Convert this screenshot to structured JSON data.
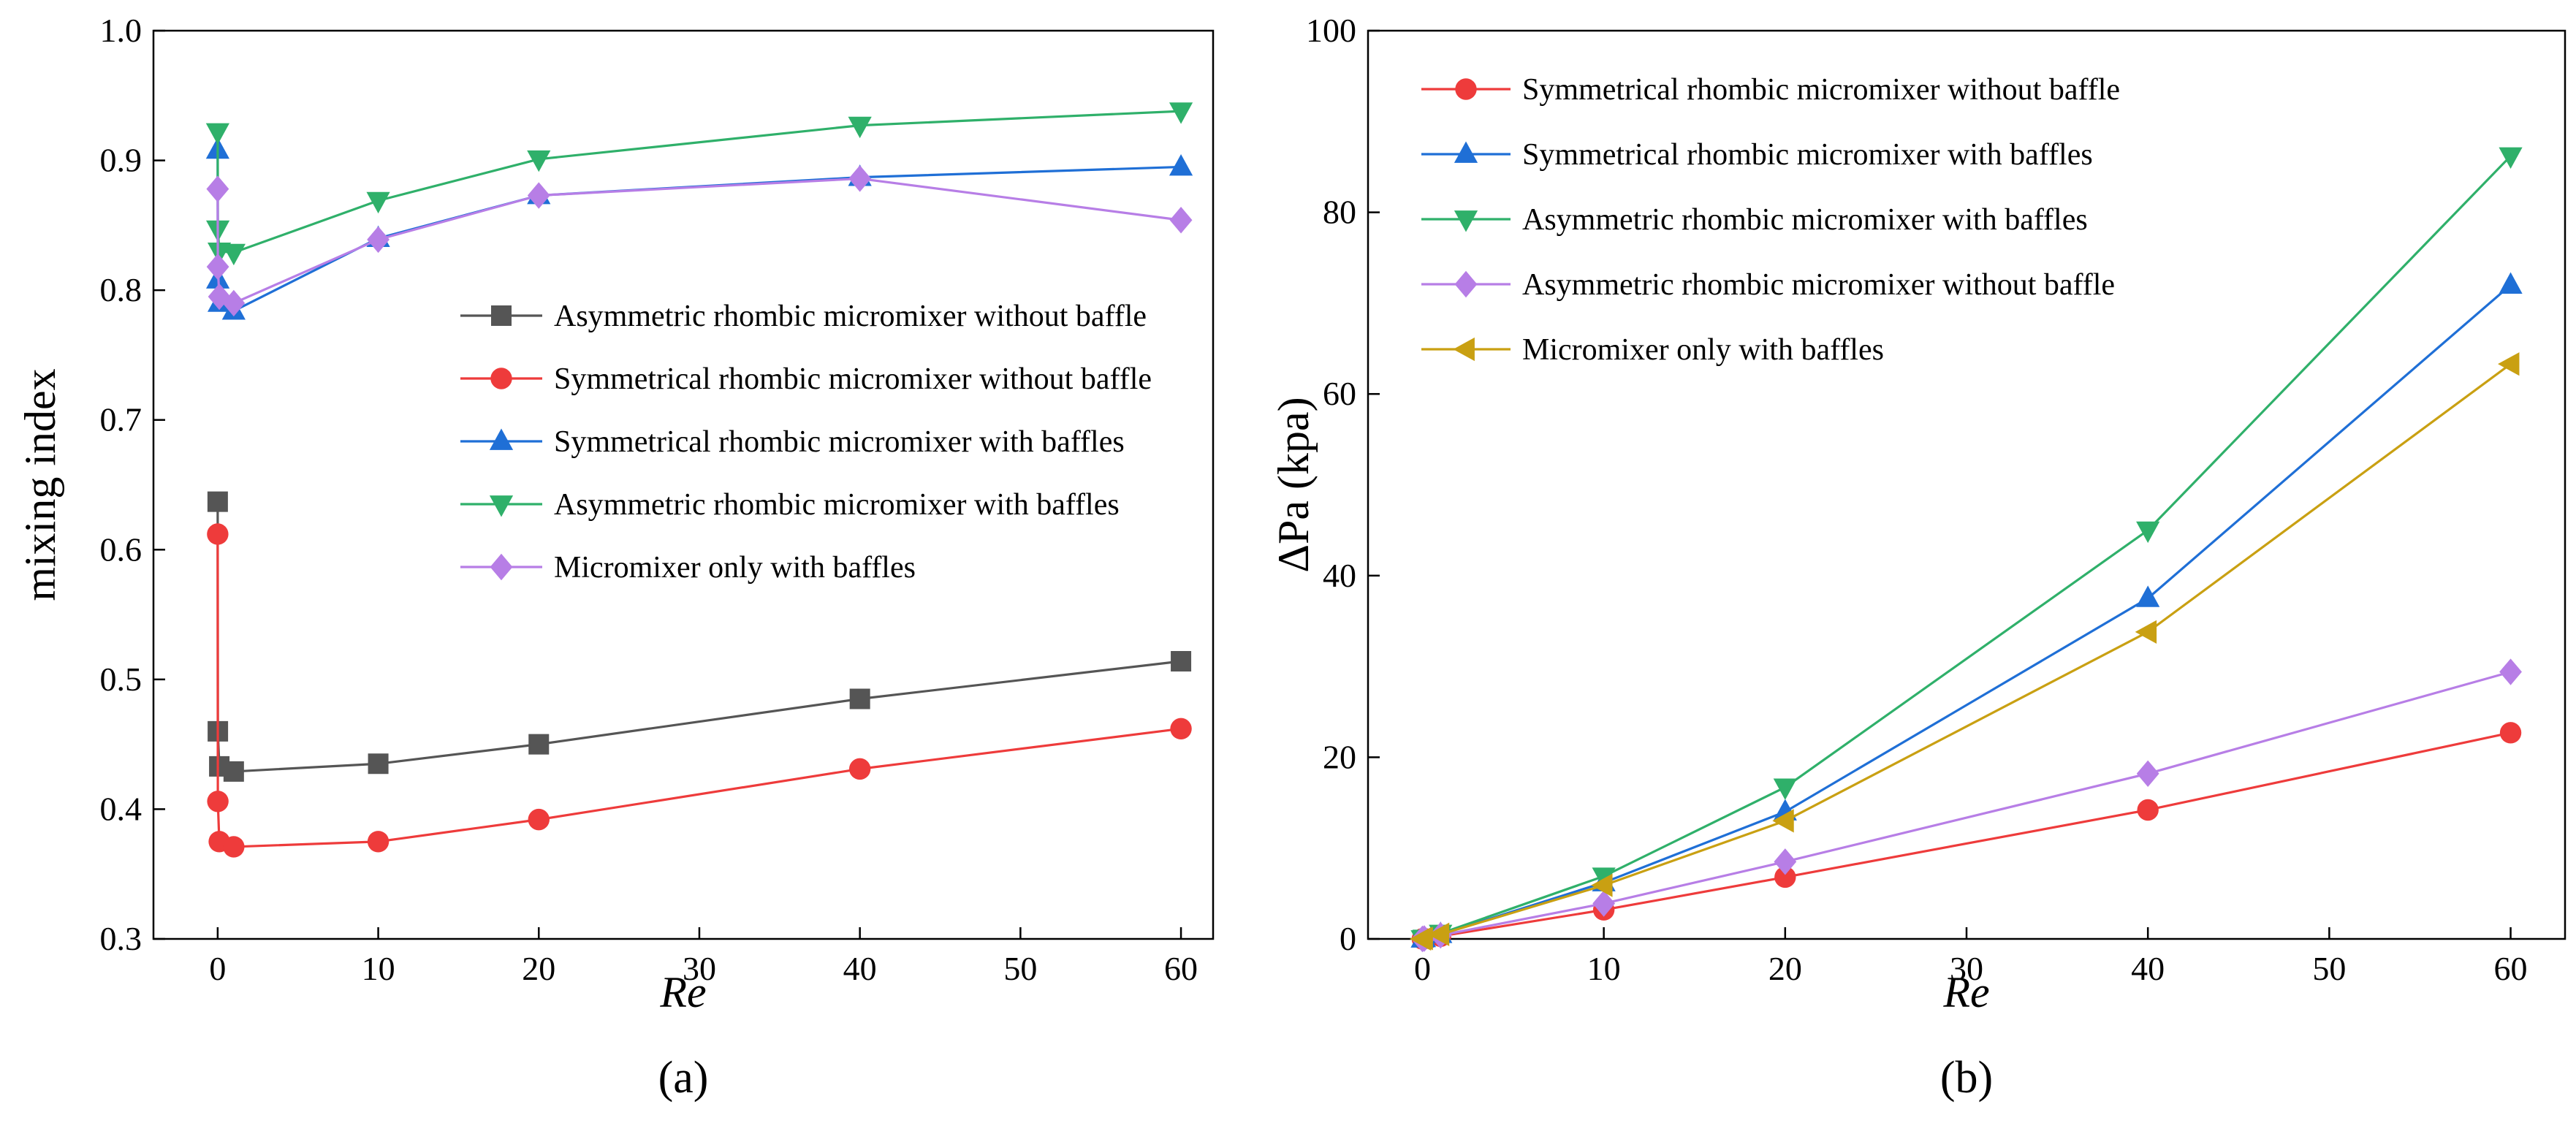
{
  "chart_data": [
    {
      "panel_label": "(a)",
      "type": "line",
      "xlabel": "Re",
      "ylabel": "mixing index",
      "xlim": [
        -4,
        62
      ],
      "ylim": [
        0.3,
        1.0
      ],
      "xticks": [
        0,
        10,
        20,
        30,
        40,
        50,
        60
      ],
      "xtick_labels": [
        "0",
        "10",
        "20",
        "30",
        "40",
        "50",
        "60"
      ],
      "yticks": [
        0.3,
        0.4,
        0.5,
        0.6,
        0.7,
        0.8,
        0.9,
        1.0
      ],
      "ytick_labels": [
        "0.3",
        "0.4",
        "0.5",
        "0.6",
        "0.7",
        "0.8",
        "0.9",
        "1.0"
      ],
      "grid": false,
      "legend_position": "center-right",
      "series": [
        {
          "name": "Asymmetric rhombic micromixer without baffle",
          "color": "#555555",
          "marker": "square",
          "x": [
            0,
            0.01,
            0.1,
            1,
            10,
            20,
            40,
            60
          ],
          "y": [
            0.637,
            0.46,
            0.433,
            0.429,
            0.435,
            0.45,
            0.485,
            0.514
          ]
        },
        {
          "name": "Symmetrical rhombic micromixer without baffle",
          "color": "#ee3b3b",
          "marker": "circle",
          "x": [
            0,
            0.01,
            0.1,
            1,
            10,
            20,
            40,
            60
          ],
          "y": [
            0.612,
            0.406,
            0.375,
            0.371,
            0.375,
            0.392,
            0.431,
            0.462
          ]
        },
        {
          "name": "Symmetrical rhombic micromixer with baffles",
          "color": "#1f6fd6",
          "marker": "triangle-up",
          "x": [
            0,
            0.01,
            0.1,
            1,
            10,
            20,
            40,
            60
          ],
          "y": [
            0.908,
            0.808,
            0.79,
            0.784,
            0.84,
            0.873,
            0.887,
            0.895
          ]
        },
        {
          "name": "Asymmetric rhombic micromixer with baffles",
          "color": "#2fb06a",
          "marker": "triangle-down",
          "x": [
            0,
            0.01,
            0.1,
            1,
            10,
            20,
            40,
            60
          ],
          "y": [
            0.922,
            0.847,
            0.83,
            0.829,
            0.869,
            0.901,
            0.927,
            0.938
          ]
        },
        {
          "name": "Micromixer only with baffles",
          "color": "#b77ee6",
          "marker": "diamond",
          "x": [
            0,
            0.01,
            0.1,
            1,
            10,
            20,
            40,
            60
          ],
          "y": [
            0.878,
            0.818,
            0.795,
            0.79,
            0.839,
            0.873,
            0.886,
            0.854
          ]
        }
      ]
    },
    {
      "panel_label": "(b)",
      "type": "line",
      "xlabel": "Re",
      "ylabel": "ΔPa (kpa)",
      "xlim": [
        -3,
        63
      ],
      "ylim": [
        0,
        100
      ],
      "xticks": [
        0,
        10,
        20,
        30,
        40,
        50,
        60
      ],
      "xtick_labels": [
        "0",
        "10",
        "20",
        "30",
        "40",
        "50",
        "60"
      ],
      "yticks": [
        0,
        20,
        40,
        60,
        80,
        100
      ],
      "ytick_labels": [
        "0",
        "20",
        "40",
        "60",
        "80",
        "100"
      ],
      "grid": false,
      "legend_position": "top-left",
      "series": [
        {
          "name": "Symmetrical rhombic micromixer without baffle",
          "color": "#ee3b3b",
          "marker": "circle",
          "x": [
            0,
            0.1,
            1,
            10,
            20,
            40,
            60
          ],
          "y": [
            0.0,
            0.03,
            0.3,
            3.2,
            6.8,
            14.2,
            22.7
          ]
        },
        {
          "name": "Symmetrical rhombic micromixer with baffles",
          "color": "#1f6fd6",
          "marker": "triangle-up",
          "x": [
            0,
            0.1,
            1,
            10,
            20,
            40,
            60
          ],
          "y": [
            0.0,
            0.05,
            0.5,
            6.2,
            14.0,
            37.5,
            72.0
          ]
        },
        {
          "name": "Asymmetric rhombic micromixer with baffles",
          "color": "#2fb06a",
          "marker": "triangle-down",
          "x": [
            0,
            0.1,
            1,
            10,
            20,
            40,
            60
          ],
          "y": [
            0.0,
            0.06,
            0.6,
            6.9,
            16.7,
            45.0,
            86.2
          ]
        },
        {
          "name": "Asymmetric rhombic micromixer without baffle",
          "color": "#b77ee6",
          "marker": "diamond",
          "x": [
            0,
            0.1,
            1,
            10,
            20,
            40,
            60
          ],
          "y": [
            0.0,
            0.04,
            0.4,
            3.9,
            8.5,
            18.2,
            29.4
          ]
        },
        {
          "name": "Micromixer only with baffles",
          "color": "#c9a012",
          "marker": "triangle-left",
          "x": [
            0,
            0.1,
            1,
            10,
            20,
            40,
            60
          ],
          "y": [
            0.0,
            0.05,
            0.5,
            5.9,
            13.0,
            33.8,
            63.3
          ]
        }
      ]
    }
  ]
}
